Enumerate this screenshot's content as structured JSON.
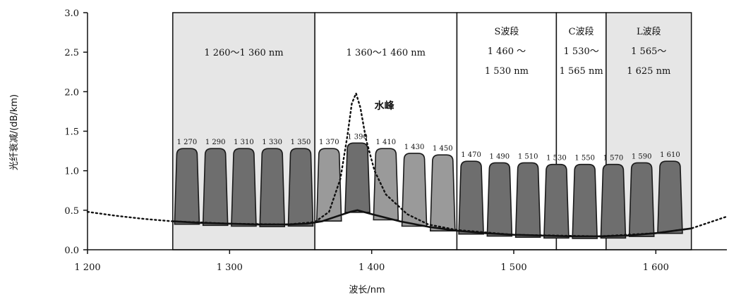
{
  "chart_data": {
    "type": "area",
    "title": "",
    "xlabel": "波长/nm",
    "ylabel": "光纤衰减/(dB/km)",
    "xlim": [
      1200,
      1650
    ],
    "ylim": [
      0,
      3.0
    ],
    "x_ticks": [
      1200,
      1300,
      1400,
      1500,
      1600
    ],
    "x_tick_labels": [
      "1 200",
      "1 300",
      "1 400",
      "1 500",
      "1 600"
    ],
    "y_ticks": [
      0.0,
      0.5,
      1.0,
      1.5,
      2.0,
      2.5,
      3.0
    ],
    "y_tick_labels": [
      "0.0",
      "0.5",
      "1.0",
      "1.5",
      "2.0",
      "2.5",
      "3.0"
    ],
    "grid": false,
    "bands": [
      {
        "start": 1260,
        "end": 1360,
        "lines": [
          "1 260～1 360 nm"
        ],
        "shaded": true
      },
      {
        "start": 1360,
        "end": 1460,
        "lines": [
          "1 360～1 460 nm"
        ],
        "shaded": false
      },
      {
        "start": 1460,
        "end": 1530,
        "lines": [
          "S波段",
          "1 460 ～",
          "1 530 nm"
        ],
        "shaded": false
      },
      {
        "start": 1530,
        "end": 1565,
        "lines": [
          "C波段",
          "1 530～",
          "1 565 nm"
        ],
        "shaded": false
      },
      {
        "start": 1565,
        "end": 1625,
        "lines": [
          "L波段",
          "1 565～",
          "1 625 nm"
        ],
        "shaded": true
      }
    ],
    "channels": [
      {
        "center": 1270,
        "label": "1 270",
        "peak": 1.28
      },
      {
        "center": 1290,
        "label": "1 290",
        "peak": 1.28
      },
      {
        "center": 1310,
        "label": "1 310",
        "peak": 1.28
      },
      {
        "center": 1330,
        "label": "1 330",
        "peak": 1.28
      },
      {
        "center": 1350,
        "label": "1 350",
        "peak": 1.28
      },
      {
        "center": 1370,
        "label": "1 370",
        "peak": 1.28
      },
      {
        "center": 1390,
        "label": "1 390",
        "peak": 1.35
      },
      {
        "center": 1410,
        "label": "1 410",
        "peak": 1.28
      },
      {
        "center": 1430,
        "label": "1 430",
        "peak": 1.22
      },
      {
        "center": 1450,
        "label": "1 450",
        "peak": 1.2
      },
      {
        "center": 1470,
        "label": "1 470",
        "peak": 1.12
      },
      {
        "center": 1490,
        "label": "1 490",
        "peak": 1.1
      },
      {
        "center": 1510,
        "label": "1 510",
        "peak": 1.1
      },
      {
        "center": 1530,
        "label": "1 530",
        "peak": 1.08
      },
      {
        "center": 1550,
        "label": "1 550",
        "peak": 1.08
      },
      {
        "center": 1570,
        "label": "1 570",
        "peak": 1.08
      },
      {
        "center": 1590,
        "label": "1 590",
        "peak": 1.1
      },
      {
        "center": 1610,
        "label": "1 610",
        "peak": 1.12
      }
    ],
    "attenuation_solid": {
      "x": [
        1260,
        1280,
        1300,
        1320,
        1340,
        1355,
        1365,
        1375,
        1385,
        1390,
        1400,
        1420,
        1440,
        1460,
        1480,
        1500,
        1520,
        1540,
        1560,
        1580,
        1600,
        1625
      ],
      "y": [
        0.36,
        0.34,
        0.33,
        0.32,
        0.32,
        0.33,
        0.36,
        0.42,
        0.48,
        0.5,
        0.45,
        0.36,
        0.29,
        0.24,
        0.21,
        0.19,
        0.18,
        0.17,
        0.17,
        0.18,
        0.21,
        0.27
      ]
    },
    "attenuation_dotted": {
      "x": [
        1200,
        1220,
        1240,
        1260,
        1300,
        1340,
        1360,
        1370,
        1378,
        1383,
        1386,
        1389,
        1392,
        1396,
        1402,
        1410,
        1425,
        1440,
        1460,
        1500,
        1560,
        1600,
        1625,
        1650
      ],
      "y": [
        0.48,
        0.43,
        0.39,
        0.36,
        0.33,
        0.32,
        0.35,
        0.48,
        0.9,
        1.45,
        1.85,
        1.98,
        1.8,
        1.4,
        1.0,
        0.7,
        0.45,
        0.32,
        0.25,
        0.19,
        0.17,
        0.21,
        0.27,
        0.42
      ]
    },
    "annotations": [
      {
        "text": "水峰",
        "x": 1400,
        "y": 1.78
      }
    ],
    "colors": {
      "channel_fill": "#6e6e6e",
      "channel_fill_light": "#9a9a9a",
      "channel_stroke": "#1a1a1a",
      "band_shade": "#e6e6e6",
      "axis": "#111111"
    }
  }
}
